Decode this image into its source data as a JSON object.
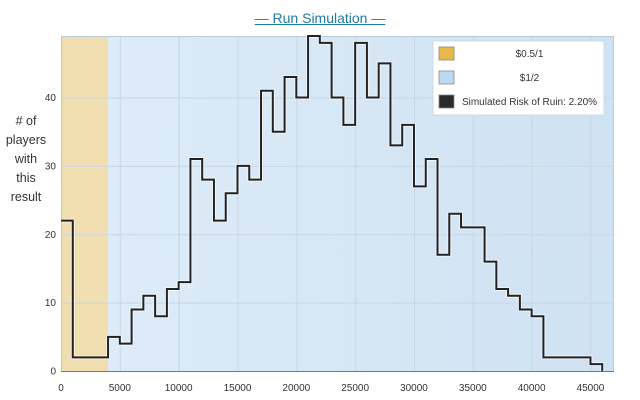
{
  "header": {
    "run_link": "— Run Simulation —"
  },
  "chart_data": {
    "type": "step",
    "title": "",
    "xlabel": "",
    "ylabel": "# of\nplayers\nwith\nthis\nresult",
    "xlim": [
      0,
      47000
    ],
    "ylim": [
      0,
      49
    ],
    "x_ticks": [
      0,
      5000,
      10000,
      15000,
      20000,
      25000,
      30000,
      35000,
      40000,
      45000
    ],
    "y_ticks": [
      0,
      10,
      20,
      30,
      40
    ],
    "grid": true,
    "bin_width": 1000,
    "bin_starts": [
      0,
      1000,
      2000,
      3000,
      4000,
      5000,
      6000,
      7000,
      8000,
      9000,
      10000,
      11000,
      12000,
      13000,
      14000,
      15000,
      16000,
      17000,
      18000,
      19000,
      20000,
      21000,
      22000,
      23000,
      24000,
      25000,
      26000,
      27000,
      28000,
      29000,
      30000,
      31000,
      32000,
      33000,
      34000,
      35000,
      36000,
      37000,
      38000,
      39000,
      40000,
      41000,
      42000,
      43000,
      44000,
      45000
    ],
    "counts": [
      22,
      2,
      2,
      2,
      5,
      4,
      9,
      11,
      8,
      12,
      13,
      31,
      28,
      22,
      26,
      30,
      28,
      41,
      35,
      43,
      40,
      49,
      48,
      40,
      36,
      48,
      40,
      45,
      33,
      36,
      27,
      31,
      17,
      23,
      21,
      21,
      16,
      12,
      11,
      9,
      8,
      2,
      2,
      2,
      2,
      1
    ],
    "regions": [
      {
        "label": "$0.5/1",
        "from": 0,
        "to": 4000,
        "color": "#f0ddb0"
      },
      {
        "label": "$1/2",
        "from": 4000,
        "to": 47000,
        "color": "#d7e8f6"
      }
    ],
    "legend": [
      {
        "label": "$0.5/1",
        "color": "#e8b84a"
      },
      {
        "label": "$1/2",
        "color": "#bcd9f2"
      },
      {
        "label": "Simulated Risk of Ruin: 2.20%",
        "color": "#2b2b2b"
      }
    ],
    "legend_position": "top-right",
    "line_color": "#222222"
  }
}
